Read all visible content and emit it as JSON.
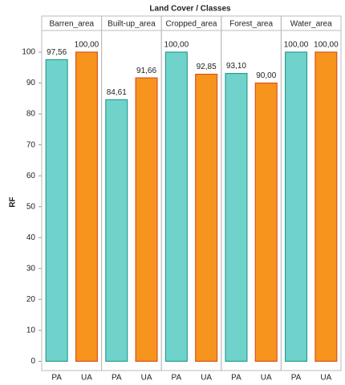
{
  "chart_data": {
    "type": "bar",
    "title": "Land Cover / Classes",
    "ylabel": "RF",
    "categories": [
      "Barren_area",
      "Built-up_area",
      "Cropped_area",
      "Forest_area",
      "Water_area"
    ],
    "series": [
      {
        "name": "PA",
        "color": "#6fd3cc",
        "values": [
          97.56,
          84.61,
          100,
          93.1,
          100
        ],
        "value_labels": [
          "97,56",
          "84,61",
          "100,00",
          "93,10",
          "100,00"
        ]
      },
      {
        "name": "UA",
        "color": "#f7941d",
        "values": [
          100,
          91.66,
          92.85,
          90,
          100
        ],
        "value_labels": [
          "100,00",
          "91,66",
          "92,85",
          "90,00",
          "100,00"
        ]
      }
    ],
    "ylim": [
      -3,
      107
    ],
    "yticks": [
      0,
      10,
      20,
      30,
      40,
      50,
      60,
      70,
      80,
      90,
      100
    ],
    "grid": false
  }
}
